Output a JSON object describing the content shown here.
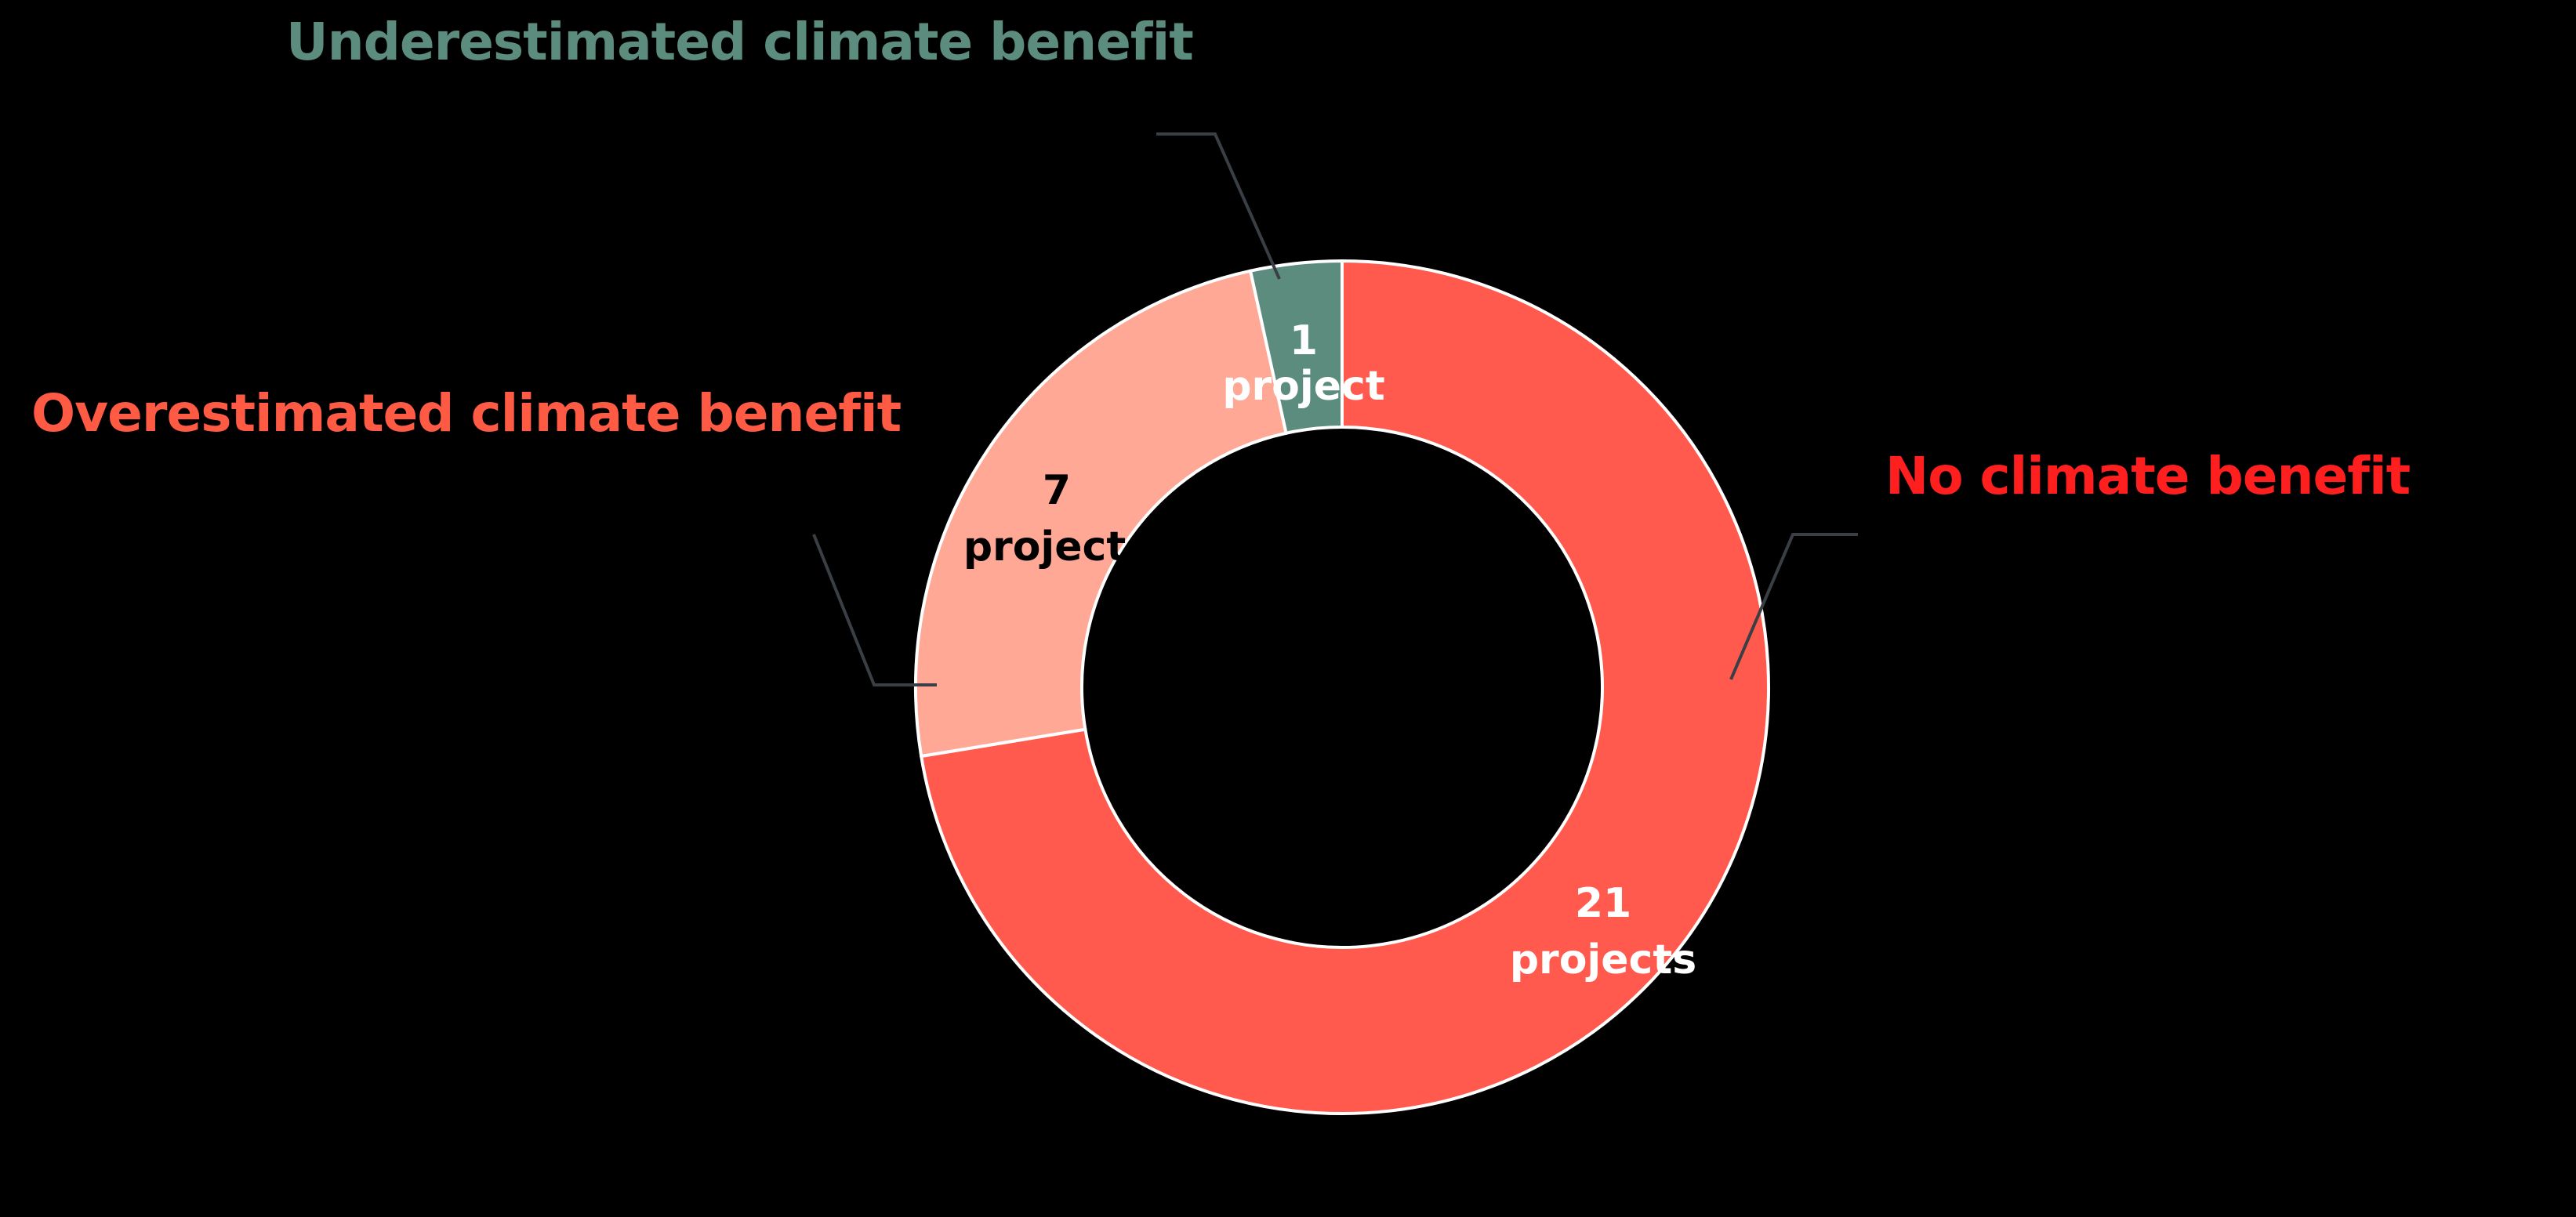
{
  "chart_data": {
    "type": "pie",
    "donut": true,
    "legend": "none",
    "slices": [
      {
        "label": "No climate benefit",
        "value": 21,
        "value_text": "21",
        "unit_text": "projects",
        "color": "#FF5A4D",
        "label_color": "#FF1F1F",
        "value_color": "#FFFFFF"
      },
      {
        "label": "Overestimated climate benefit",
        "value": 7,
        "value_text": "7",
        "unit_text": "projects",
        "color": "#FFA895",
        "label_color": "#FF5A44",
        "value_color": "#000000"
      },
      {
        "label": "Underestimated climate benefit",
        "value": 1,
        "value_text": "1",
        "unit_text": "project",
        "color": "#5C8C7E",
        "label_color": "#5C8C7E",
        "value_color": "#FFFFFF"
      }
    ]
  }
}
